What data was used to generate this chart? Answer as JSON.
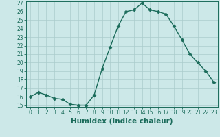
{
  "x": [
    0,
    1,
    2,
    3,
    4,
    5,
    6,
    7,
    8,
    9,
    10,
    11,
    12,
    13,
    14,
    15,
    16,
    17,
    18,
    19,
    20,
    21,
    22,
    23
  ],
  "y": [
    16.0,
    16.5,
    16.2,
    15.8,
    15.7,
    15.1,
    15.0,
    15.0,
    16.2,
    19.3,
    21.8,
    24.3,
    26.0,
    26.2,
    27.0,
    26.2,
    26.0,
    25.7,
    24.3,
    22.7,
    21.0,
    20.0,
    19.0,
    17.7
  ],
  "line_color": "#1a6b5a",
  "marker": "D",
  "marker_size": 2.5,
  "bg_color": "#cce8e8",
  "grid_color": "#aacccc",
  "xlabel": "Humidex (Indice chaleur)",
  "ylim": [
    15,
    27
  ],
  "xlim_min": -0.5,
  "xlim_max": 23.5,
  "yticks": [
    15,
    16,
    17,
    18,
    19,
    20,
    21,
    22,
    23,
    24,
    25,
    26,
    27
  ],
  "xticks": [
    0,
    1,
    2,
    3,
    4,
    5,
    6,
    7,
    8,
    9,
    10,
    11,
    12,
    13,
    14,
    15,
    16,
    17,
    18,
    19,
    20,
    21,
    22,
    23
  ],
  "tick_fontsize": 5.5,
  "xlabel_fontsize": 7.5,
  "line_width": 1.0
}
